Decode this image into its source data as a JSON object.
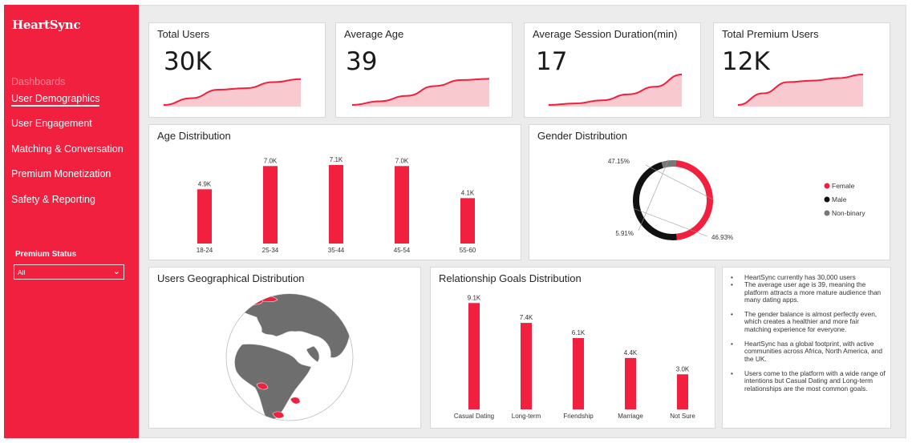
{
  "app": {
    "name": "HeartSync"
  },
  "sidebar": {
    "heading": "Dashboards",
    "items": [
      {
        "label": "User Demographics",
        "active": true
      },
      {
        "label": "User Engagement",
        "active": false
      },
      {
        "label": "Matching & Conversation",
        "active": false
      },
      {
        "label": "Premium Monetization",
        "active": false
      },
      {
        "label": "Safety & Reporting",
        "active": false
      }
    ],
    "filter": {
      "label": "Premium Status",
      "value": "All"
    }
  },
  "colors": {
    "accent": "#f2203f",
    "accent_light": "#f9c9d0",
    "male": "#111111",
    "non_binary": "#777777"
  },
  "kpis": [
    {
      "title": "Total Users",
      "value": "30K",
      "trend": [
        0.0,
        0.22,
        0.5,
        0.55,
        0.75,
        0.85
      ]
    },
    {
      "title": "Average Age",
      "value": "39",
      "trend": [
        0.0,
        0.12,
        0.3,
        0.62,
        0.82,
        0.86
      ]
    },
    {
      "title": "Average Session Duration(min)",
      "value": "17",
      "trend": [
        0.0,
        0.05,
        0.15,
        0.35,
        0.6,
        1.0
      ]
    },
    {
      "title": "Total Premium Users",
      "value": "12K",
      "trend": [
        0.0,
        0.38,
        0.75,
        0.8,
        0.88,
        1.0
      ]
    }
  ],
  "chart_data": [
    {
      "type": "bar",
      "title": "Age Distribution",
      "categories": [
        "18-24",
        "25-34",
        "35-44",
        "45-54",
        "55-60"
      ],
      "values": [
        4.9,
        7.0,
        7.1,
        7.0,
        4.1
      ],
      "labels": [
        "4.9K",
        "7.0K",
        "7.1K",
        "7.0K",
        "4.1K"
      ],
      "ylim": [
        0,
        7.6
      ]
    },
    {
      "type": "pie",
      "title": "Gender Distribution",
      "categories": [
        "Female",
        "Male",
        "Non-binary"
      ],
      "values": [
        47.15,
        46.93,
        5.91
      ],
      "labels": [
        "47.15%",
        "46.93%",
        "5.91%"
      ],
      "colors": [
        "#f2203f",
        "#111111",
        "#777777"
      ],
      "legend": "right"
    },
    {
      "type": "bar",
      "title": "Relationship Goals Distribution",
      "categories": [
        "Casual Dating",
        "Long-term",
        "Friendship",
        "Marriage",
        "Not Sure"
      ],
      "values": [
        9.1,
        7.4,
        6.1,
        4.4,
        3.0
      ],
      "labels": [
        "9.1K",
        "7.4K",
        "6.1K",
        "4.4K",
        "3.0K"
      ],
      "ylim": [
        0,
        9.6
      ]
    }
  ],
  "map": {
    "title": "Users Geographical Distribution"
  },
  "insights": [
    "HeartSync currently has 30,000 users",
    "The average user age is 39, meaning the platform attracts a more mature audience than many dating apps.",
    "The gender balance is almost perfectly even, which creates a healthier and more fair matching experience for everyone.",
    "HeartSync has a global footprint, with active communities across Africa, North America, and the UK.",
    "Users come to the platform with a wide range of intentions but Casual Dating and Long-term relationships are the most common goals."
  ]
}
